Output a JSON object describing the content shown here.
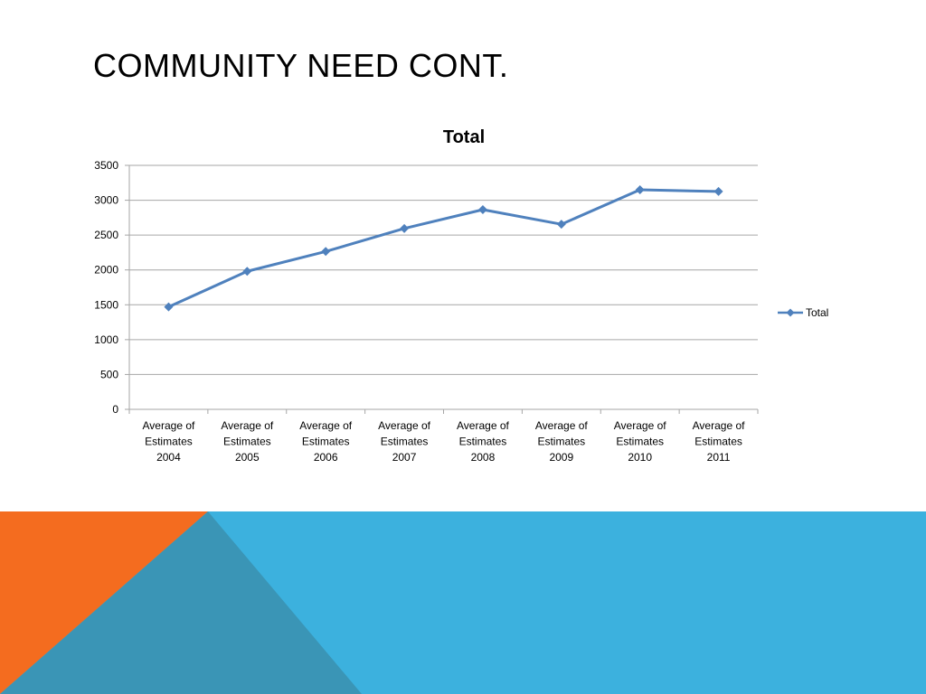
{
  "slide": {
    "title": "COMMUNITY NEED CONT."
  },
  "colors": {
    "line": "#4f81bd",
    "gridline": "#a6a6a6",
    "band_blue": "#3cb1de",
    "band_orange": "#f46c1f",
    "band_teal": "#3a95b6"
  },
  "chart_data": {
    "type": "line",
    "title": "Total",
    "xlabel": "",
    "ylabel": "",
    "categories": [
      [
        "Average of",
        "Estimates",
        "2004"
      ],
      [
        "Average of",
        "Estimates",
        "2005"
      ],
      [
        "Average of",
        "Estimates",
        "2006"
      ],
      [
        "Average of",
        "Estimates",
        "2007"
      ],
      [
        "Average of",
        "Estimates",
        "2008"
      ],
      [
        "Average of",
        "Estimates",
        "2009"
      ],
      [
        "Average of",
        "Estimates",
        "2010"
      ],
      [
        "Average of",
        "Estimates",
        "2011"
      ]
    ],
    "series": [
      {
        "name": "Total",
        "values": [
          1470,
          1980,
          2265,
          2595,
          2865,
          2655,
          3150,
          3125
        ],
        "marker": "diamond"
      }
    ],
    "ylim": [
      0,
      3500
    ],
    "yticks": [
      0,
      500,
      1000,
      1500,
      2000,
      2500,
      3000,
      3500
    ],
    "grid": true,
    "legend": "right"
  }
}
